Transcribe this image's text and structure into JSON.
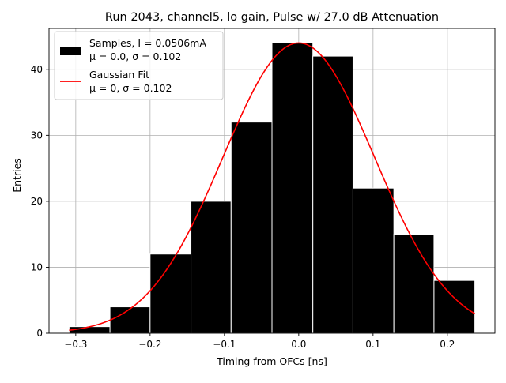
{
  "chart_data": {
    "type": "bar",
    "title": "Run 2043, channel5, lo gain, Pulse w/ 27.0 dB Attenuation",
    "xlabel": "Timing from OFCs [ns]",
    "ylabel": "Entries",
    "xlim": [
      -0.336,
      0.264
    ],
    "ylim": [
      0,
      46.2
    ],
    "xticks": [
      -0.3,
      -0.2,
      -0.1,
      0.0,
      0.1,
      0.2
    ],
    "xtick_labels": [
      "−0.3",
      "−0.2",
      "−0.1",
      "0.0",
      "0.1",
      "0.2"
    ],
    "yticks": [
      0,
      10,
      20,
      30,
      40
    ],
    "ytick_labels": [
      "0",
      "10",
      "20",
      "30",
      "40"
    ],
    "grid": true,
    "legend_position": "top-left",
    "bins": [
      {
        "left": -0.309,
        "right": -0.254,
        "count": 1
      },
      {
        "left": -0.254,
        "right": -0.2,
        "count": 4
      },
      {
        "left": -0.2,
        "right": -0.145,
        "count": 12
      },
      {
        "left": -0.145,
        "right": -0.091,
        "count": 20
      },
      {
        "left": -0.091,
        "right": -0.036,
        "count": 32
      },
      {
        "left": -0.036,
        "right": 0.019,
        "count": 44
      },
      {
        "left": 0.019,
        "right": 0.073,
        "count": 42
      },
      {
        "left": 0.073,
        "right": 0.128,
        "count": 22
      },
      {
        "left": 0.128,
        "right": 0.182,
        "count": 15
      },
      {
        "left": 0.182,
        "right": 0.237,
        "count": 8
      }
    ],
    "fit": {
      "type": "gaussian",
      "mu": 0.0,
      "sigma": 0.102,
      "amplitude": 44.0,
      "x_range": [
        -0.309,
        0.237
      ]
    },
    "series": [
      {
        "name": "Samples, I = 0.0506mA",
        "stats": "μ = 0.0, σ = 0.102",
        "color": "#000000"
      },
      {
        "name": "Gaussian Fit",
        "stats": "μ = 0, σ = 0.102",
        "color": "#ff0000"
      }
    ]
  }
}
